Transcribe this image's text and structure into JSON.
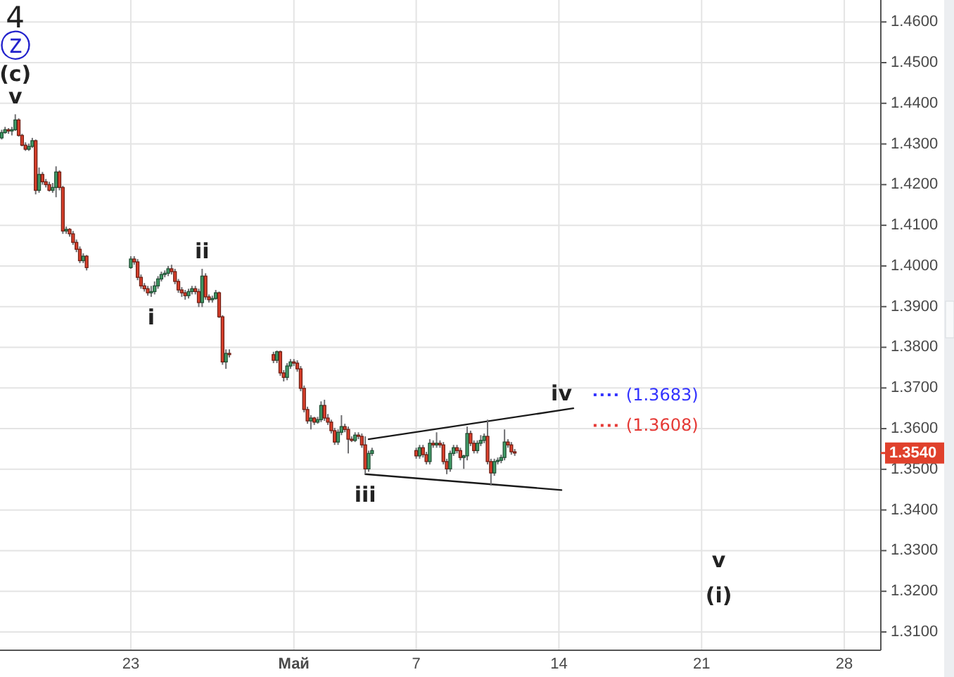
{
  "chart_data": {
    "type": "candlestick",
    "x": [
      "--04-16T16:00",
      "--04-16T20:00",
      "--04-17T00:00",
      "--04-17T04:00",
      "--04-17T08:00",
      "--04-17T12:00",
      "--04-17T16:00",
      "--04-17T20:00",
      "--04-18T00:00",
      "--04-18T04:00",
      "--04-18T08:00",
      "--04-18T12:00",
      "--04-18T16:00",
      "--04-18T20:00",
      "--04-19T00:00",
      "--04-19T04:00",
      "--04-19T08:00",
      "--04-19T12:00",
      "--04-19T16:00",
      "--04-19T20:00",
      "--04-20T00:00",
      "--04-20T04:00",
      "--04-20T08:00",
      "--04-20T12:00",
      "--04-20T16:00",
      "--04-20T20:00",
      "--04-23T00:00",
      "--04-23T04:00",
      "--04-23T08:00",
      "--04-23T12:00",
      "--04-23T16:00",
      "--04-23T20:00",
      "--04-24T00:00",
      "--04-24T04:00",
      "--04-24T08:00",
      "--04-24T12:00",
      "--04-24T16:00",
      "--04-24T20:00",
      "--04-25T00:00",
      "--04-25T04:00",
      "--04-25T08:00",
      "--04-25T12:00",
      "--04-25T16:00",
      "--04-25T20:00",
      "--04-26T00:00",
      "--04-26T04:00",
      "--04-26T08:00",
      "--04-26T12:00",
      "--04-26T16:00",
      "--04-26T20:00",
      "--04-27T00:00",
      "--04-27T04:00",
      "--04-27T08:00",
      "--04-27T12:00",
      "--04-27T16:00",
      "--04-27T20:00",
      "--04-30T00:00",
      "--04-30T04:00",
      "--04-30T08:00",
      "--04-30T12:00",
      "--04-30T16:00",
      "--04-30T20:00",
      "--05-01T00:00",
      "--05-01T04:00",
      "--05-01T08:00",
      "--05-01T12:00",
      "--05-01T16:00",
      "--05-01T20:00",
      "--05-02T00:00",
      "--05-02T04:00",
      "--05-02T08:00",
      "--05-02T12:00",
      "--05-02T16:00",
      "--05-02T20:00",
      "--05-03T00:00",
      "--05-03T04:00",
      "--05-03T08:00",
      "--05-03T12:00",
      "--05-03T16:00",
      "--05-03T20:00",
      "--05-04T00:00",
      "--05-04T04:00",
      "--05-04T08:00",
      "--05-04T12:00",
      "--05-04T16:00",
      "--05-04T20:00",
      "--05-07T00:00",
      "--05-07T04:00",
      "--05-07T08:00",
      "--05-07T12:00",
      "--05-07T16:00",
      "--05-07T20:00",
      "--05-08T00:00",
      "--05-08T04:00",
      "--05-08T08:00",
      "--05-08T12:00",
      "--05-08T16:00",
      "--05-08T20:00",
      "--05-09T00:00",
      "--05-09T04:00",
      "--05-09T08:00",
      "--05-09T12:00",
      "--05-09T16:00",
      "--05-09T20:00",
      "--05-10T00:00",
      "--05-10T04:00",
      "--05-10T08:00",
      "--05-10T12:00",
      "--05-10T16:00",
      "--05-10T20:00",
      "--05-11T00:00",
      "--05-11T04:00",
      "--05-11T08:00",
      "--05-11T12:00",
      "--05-11T16:00",
      "--05-11T20:00"
    ],
    "ohlc": [
      [
        1.4315,
        1.4335,
        1.4311,
        1.4328
      ],
      [
        1.4328,
        1.4342,
        1.4325,
        1.4335
      ],
      [
        1.4335,
        1.4339,
        1.4325,
        1.4332
      ],
      [
        1.4332,
        1.4342,
        1.4321,
        1.4335
      ],
      [
        1.4335,
        1.4373,
        1.4332,
        1.4359
      ],
      [
        1.4359,
        1.4363,
        1.4318,
        1.4321
      ],
      [
        1.4321,
        1.4325,
        1.4294,
        1.4297
      ],
      [
        1.4297,
        1.4304,
        1.4283,
        1.4287
      ],
      [
        1.4287,
        1.4301,
        1.4283,
        1.4294
      ],
      [
        1.4294,
        1.4315,
        1.429,
        1.4308
      ],
      [
        1.4308,
        1.4311,
        1.4176,
        1.4186
      ],
      [
        1.4186,
        1.4242,
        1.418,
        1.4225
      ],
      [
        1.4225,
        1.4231,
        1.42,
        1.4207
      ],
      [
        1.4207,
        1.4214,
        1.4193,
        1.42
      ],
      [
        1.42,
        1.4207,
        1.4183,
        1.4186
      ],
      [
        1.4186,
        1.4204,
        1.418,
        1.4193
      ],
      [
        1.4193,
        1.4245,
        1.4169,
        1.4231
      ],
      [
        1.4231,
        1.4235,
        1.4186,
        1.4193
      ],
      [
        1.4193,
        1.4197,
        1.4079,
        1.4086
      ],
      [
        1.4086,
        1.4097,
        1.4079,
        1.409
      ],
      [
        1.409,
        1.4093,
        1.4072,
        1.4079
      ],
      [
        1.4079,
        1.4086,
        1.4052,
        1.4058
      ],
      [
        1.4058,
        1.4065,
        1.4034,
        1.4041
      ],
      [
        1.4041,
        1.4048,
        1.4007,
        1.4013
      ],
      [
        1.4013,
        1.4031,
        1.4007,
        1.4024
      ],
      [
        1.4024,
        1.4027,
        1.3989,
        1.3996
      ],
      [
        1.3996,
        1.4024,
        1.3993,
        1.4017
      ],
      [
        1.4017,
        1.4024,
        1.4003,
        1.401
      ],
      [
        1.401,
        1.4017,
        1.3965,
        1.3972
      ],
      [
        1.3972,
        1.3979,
        1.3944,
        1.3951
      ],
      [
        1.3951,
        1.3958,
        1.3937,
        1.3944
      ],
      [
        1.3944,
        1.3951,
        1.3927,
        1.3934
      ],
      [
        1.3934,
        1.3951,
        1.3924,
        1.3937
      ],
      [
        1.3937,
        1.3962,
        1.393,
        1.3951
      ],
      [
        1.3951,
        1.3975,
        1.3944,
        1.3968
      ],
      [
        1.3968,
        1.3986,
        1.3962,
        1.3979
      ],
      [
        1.3979,
        1.3989,
        1.3972,
        1.3982
      ],
      [
        1.3982,
        1.4,
        1.3975,
        1.3993
      ],
      [
        1.3993,
        1.4003,
        1.3979,
        1.3986
      ],
      [
        1.3986,
        1.3993,
        1.3955,
        1.3962
      ],
      [
        1.3962,
        1.3968,
        1.3934,
        1.3941
      ],
      [
        1.3941,
        1.3948,
        1.3924,
        1.3934
      ],
      [
        1.3934,
        1.3941,
        1.3917,
        1.3927
      ],
      [
        1.3927,
        1.3944,
        1.392,
        1.3937
      ],
      [
        1.3937,
        1.3951,
        1.393,
        1.3944
      ],
      [
        1.3944,
        1.3951,
        1.393,
        1.3937
      ],
      [
        1.3937,
        1.3944,
        1.3899,
        1.391
      ],
      [
        1.391,
        1.3993,
        1.3899,
        1.3975
      ],
      [
        1.3975,
        1.3982,
        1.3917,
        1.3924
      ],
      [
        1.3924,
        1.393,
        1.391,
        1.3917
      ],
      [
        1.3917,
        1.3927,
        1.391,
        1.392
      ],
      [
        1.392,
        1.3941,
        1.3917,
        1.3934
      ],
      [
        1.3934,
        1.3937,
        1.3872,
        1.3875
      ],
      [
        1.3875,
        1.3879,
        1.3757,
        1.3764
      ],
      [
        1.3764,
        1.3795,
        1.3747,
        1.3785
      ],
      [
        1.3785,
        1.3795,
        1.3775,
        1.3782
      ],
      [
        1.3782,
        1.3789,
        1.3761,
        1.3768
      ],
      [
        1.3768,
        1.3792,
        1.3761,
        1.3789
      ],
      [
        1.3789,
        1.3792,
        1.373,
        1.3737
      ],
      [
        1.3737,
        1.3744,
        1.3716,
        1.3726
      ],
      [
        1.3726,
        1.3761,
        1.3719,
        1.3754
      ],
      [
        1.3754,
        1.3771,
        1.3747,
        1.3764
      ],
      [
        1.3764,
        1.3771,
        1.3754,
        1.3761
      ],
      [
        1.3761,
        1.3768,
        1.374,
        1.3747
      ],
      [
        1.3747,
        1.3754,
        1.3692,
        1.3699
      ],
      [
        1.3699,
        1.3706,
        1.364,
        1.3647
      ],
      [
        1.3647,
        1.3654,
        1.3612,
        1.3619
      ],
      [
        1.3619,
        1.3633,
        1.3598,
        1.3626
      ],
      [
        1.3626,
        1.3629,
        1.3609,
        1.3616
      ],
      [
        1.3616,
        1.3629,
        1.3612,
        1.3622
      ],
      [
        1.3622,
        1.3667,
        1.3616,
        1.3657
      ],
      [
        1.3657,
        1.3671,
        1.3619,
        1.3626
      ],
      [
        1.3626,
        1.3636,
        1.3609,
        1.3616
      ],
      [
        1.3616,
        1.3622,
        1.3588,
        1.3595
      ],
      [
        1.3595,
        1.3602,
        1.356,
        1.3567
      ],
      [
        1.3567,
        1.3598,
        1.356,
        1.3591
      ],
      [
        1.3591,
        1.3633,
        1.3584,
        1.3605
      ],
      [
        1.3605,
        1.3612,
        1.3591,
        1.3598
      ],
      [
        1.3598,
        1.3605,
        1.3539,
        1.3574
      ],
      [
        1.3574,
        1.3581,
        1.3567,
        1.3571
      ],
      [
        1.3571,
        1.3591,
        1.3567,
        1.3584
      ],
      [
        1.3584,
        1.3591,
        1.3574,
        1.3581
      ],
      [
        1.3581,
        1.3588,
        1.3553,
        1.356
      ],
      [
        1.356,
        1.3581,
        1.3488,
        1.3501
      ],
      [
        1.3501,
        1.3546,
        1.3494,
        1.3539
      ],
      [
        1.3539,
        1.3553,
        1.3533,
        1.3546
      ],
      [
        1.3546,
        1.3553,
        1.3526,
        1.3533
      ],
      [
        1.3533,
        1.356,
        1.3526,
        1.3553
      ],
      [
        1.3553,
        1.356,
        1.3529,
        1.3536
      ],
      [
        1.3536,
        1.3543,
        1.3512,
        1.3519
      ],
      [
        1.3519,
        1.3574,
        1.3512,
        1.3564
      ],
      [
        1.3564,
        1.3571,
        1.3553,
        1.356
      ],
      [
        1.356,
        1.3591,
        1.3553,
        1.3564
      ],
      [
        1.3564,
        1.3571,
        1.3553,
        1.356
      ],
      [
        1.356,
        1.3567,
        1.3512,
        1.3519
      ],
      [
        1.3519,
        1.3526,
        1.3488,
        1.3501
      ],
      [
        1.3501,
        1.3546,
        1.3494,
        1.3539
      ],
      [
        1.3539,
        1.356,
        1.3533,
        1.3553
      ],
      [
        1.3553,
        1.356,
        1.3539,
        1.3546
      ],
      [
        1.3546,
        1.3553,
        1.3522,
        1.3529
      ],
      [
        1.3529,
        1.3536,
        1.3501,
        1.3533
      ],
      [
        1.3533,
        1.3605,
        1.3522,
        1.3588
      ],
      [
        1.3588,
        1.3595,
        1.3557,
        1.3564
      ],
      [
        1.3564,
        1.3571,
        1.3539,
        1.3546
      ],
      [
        1.3546,
        1.3571,
        1.3539,
        1.3564
      ],
      [
        1.3564,
        1.3584,
        1.3557,
        1.3571
      ],
      [
        1.3571,
        1.3588,
        1.3564,
        1.3581
      ],
      [
        1.3581,
        1.3622,
        1.3512,
        1.3519
      ],
      [
        1.3519,
        1.3526,
        1.346,
        1.3491
      ],
      [
        1.3491,
        1.3526,
        1.3484,
        1.3519
      ],
      [
        1.3519,
        1.3529,
        1.3512,
        1.3522
      ],
      [
        1.3522,
        1.3536,
        1.3515,
        1.3529
      ],
      [
        1.3529,
        1.3598,
        1.3522,
        1.3567
      ],
      [
        1.3567,
        1.3574,
        1.3553,
        1.356
      ],
      [
        1.356,
        1.3567,
        1.3536,
        1.3543
      ],
      [
        1.3543,
        1.355,
        1.3533,
        1.354
      ]
    ],
    "colors": [
      "#43a06a",
      "#43a06a",
      "#e0412c",
      "#43a06a",
      "#43a06a",
      "#e0412c",
      "#e0412c",
      "#e0412c",
      "#43a06a",
      "#43a06a",
      "#e0412c",
      "#43a06a",
      "#e0412c",
      "#e0412c",
      "#e0412c",
      "#43a06a",
      "#43a06a",
      "#e0412c",
      "#e0412c",
      "#43a06a",
      "#e0412c",
      "#e0412c",
      "#e0412c",
      "#e0412c",
      "#43a06a",
      "#e0412c",
      "#43a06a",
      "#e0412c",
      "#e0412c",
      "#e0412c",
      "#e0412c",
      "#e0412c",
      "#43a06a",
      "#43a06a",
      "#43a06a",
      "#43a06a",
      "#43a06a",
      "#43a06a",
      "#e0412c",
      "#e0412c",
      "#e0412c",
      "#e0412c",
      "#e0412c",
      "#43a06a",
      "#43a06a",
      "#e0412c",
      "#e0412c",
      "#43a06a",
      "#e0412c",
      "#e0412c",
      "#43a06a",
      "#43a06a",
      "#e0412c",
      "#e0412c",
      "#43a06a",
      "#e0412c",
      "#e0412c",
      "#43a06a",
      "#e0412c",
      "#e0412c",
      "#43a06a",
      "#43a06a",
      "#e0412c",
      "#e0412c",
      "#e0412c",
      "#e0412c",
      "#e0412c",
      "#43a06a",
      "#e0412c",
      "#43a06a",
      "#43a06a",
      "#e0412c",
      "#e0412c",
      "#e0412c",
      "#e0412c",
      "#43a06a",
      "#43a06a",
      "#e0412c",
      "#e0412c",
      "#e0412c",
      "#43a06a",
      "#e0412c",
      "#e0412c",
      "#e0412c",
      "#43a06a",
      "#43a06a",
      "#e0412c",
      "#43a06a",
      "#e0412c",
      "#e0412c",
      "#43a06a",
      "#e0412c",
      "#43a06a",
      "#e0412c",
      "#e0412c",
      "#e0412c",
      "#43a06a",
      "#43a06a",
      "#e0412c",
      "#e0412c",
      "#43a06a",
      "#43a06a",
      "#e0412c",
      "#e0412c",
      "#43a06a",
      "#43a06a",
      "#43a06a",
      "#e0412c",
      "#e0412c",
      "#43a06a",
      "#43a06a",
      "#43a06a",
      "#43a06a",
      "#e0412c",
      "#e0412c",
      "#e0412c"
    ],
    "series": [
      {
        "type": "line",
        "x": [
          "--05-04T16:00",
          "--05-14T17:00"
        ],
        "values": [
          1.3574,
          1.365
        ],
        "color": "#1a1a1a"
      },
      {
        "type": "line",
        "x": [
          "--05-04T12:00",
          "--05-14T03:00"
        ],
        "values": [
          1.3488,
          1.3449
        ],
        "color": "#1a1a1a"
      }
    ],
    "xlim": [
      "--04-16T14:00",
      "--05-29T19:00"
    ],
    "xticks": [
      {
        "value": "--04-23",
        "label": "23"
      },
      {
        "value": "--05-01",
        "label": "Май"
      },
      {
        "value": "--05-07",
        "label": "7"
      },
      {
        "value": "--05-14",
        "label": "14"
      },
      {
        "value": "--05-21",
        "label": "21"
      },
      {
        "value": "--05-28",
        "label": "28"
      }
    ],
    "ylim": [
      1.3055,
      1.4654
    ],
    "yticks": [
      {
        "value": 1.31,
        "label": "1.3100"
      },
      {
        "value": 1.32,
        "label": "1.3200"
      },
      {
        "value": 1.33,
        "label": "1.3300"
      },
      {
        "value": 1.34,
        "label": "1.3400"
      },
      {
        "value": 1.35,
        "label": "1.3500"
      },
      {
        "value": 1.36,
        "label": "1.3600"
      },
      {
        "value": 1.37,
        "label": "1.3700"
      },
      {
        "value": 1.38,
        "label": "1.3800"
      },
      {
        "value": 1.39,
        "label": "1.3900"
      },
      {
        "value": 1.4,
        "label": "1.4000"
      },
      {
        "value": 1.41,
        "label": "1.4100"
      },
      {
        "value": 1.42,
        "label": "1.4200"
      },
      {
        "value": 1.43,
        "label": "1.4300"
      },
      {
        "value": 1.44,
        "label": "1.4400"
      },
      {
        "value": 1.45,
        "label": "1.4500"
      },
      {
        "value": 1.46,
        "label": "1.4600"
      }
    ],
    "grid": true,
    "ref_lines": [
      {
        "axis": "y",
        "value": 1.3683,
        "label": "(1.3683)",
        "color": "#3333ff",
        "line_style": "dotted"
      },
      {
        "axis": "y",
        "value": 1.3608,
        "label": "(1.3608)",
        "color": "#e53935",
        "line_style": "dotted"
      }
    ],
    "annotations": [
      {
        "text": "4",
        "x": "--04-17T08:00",
        "y": 1.4373
      },
      {
        "text": "ⓩ",
        "x": "--04-17T08:00",
        "y": 1.4373
      },
      {
        "text": "(c)",
        "x": "--04-17T08:00",
        "y": 1.4373
      },
      {
        "text": "v",
        "x": "--04-17T08:00",
        "y": 1.4373
      },
      {
        "text": "i",
        "x": "--04-24T00:00",
        "y": 1.3924
      },
      {
        "text": "ii",
        "x": "--04-26T12:00",
        "y": 1.3993
      },
      {
        "text": "iii",
        "x": "--05-04T12:00",
        "y": 1.3488
      },
      {
        "text": "iv",
        "x": "--05-14T03:00",
        "y": 1.3643
      },
      "v",
      "(i)",
      "1.3540"
    ]
  }
}
